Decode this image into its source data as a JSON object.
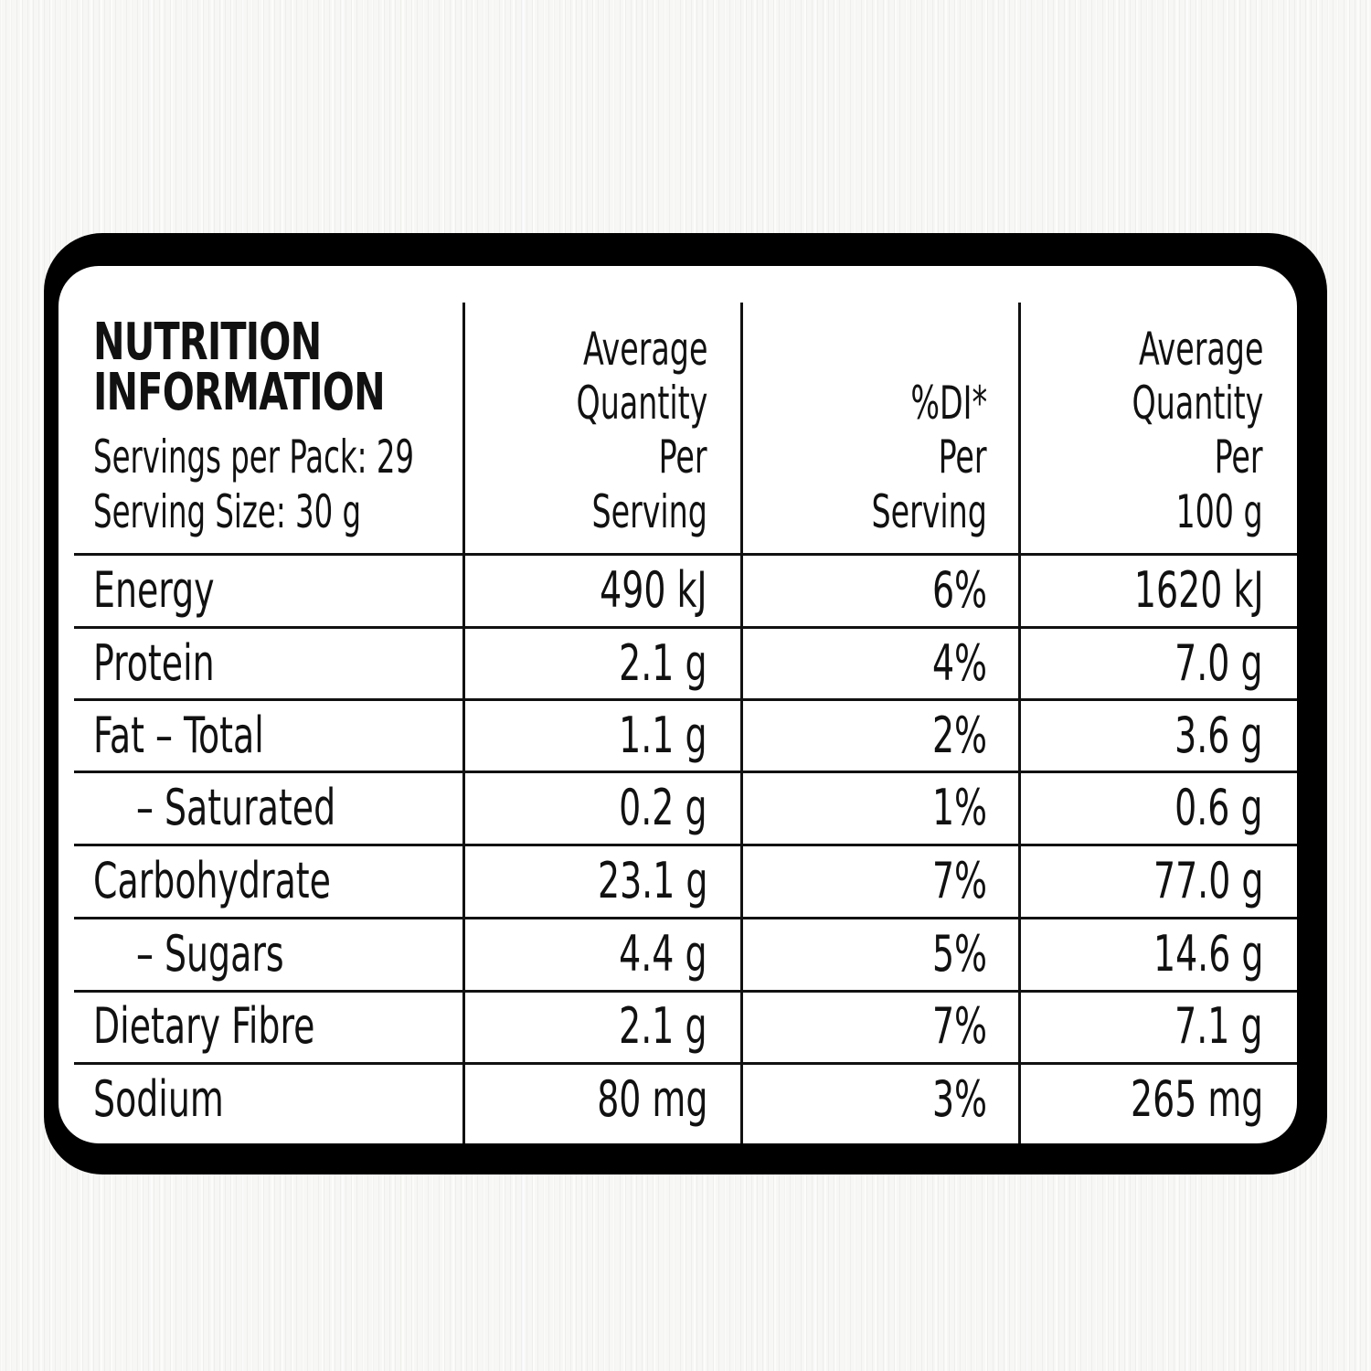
{
  "header": {
    "title_line1": "NUTRITION",
    "title_line2": "INFORMATION",
    "servings_per_pack": "Servings per Pack: 29",
    "serving_size": "Serving Size: 30 g"
  },
  "columns": {
    "per_serving": [
      "Average",
      "Quantity",
      "Per",
      "Serving"
    ],
    "di_per_serving": [
      "%DI*",
      "Per",
      "Serving"
    ],
    "per_100g": [
      "Average",
      "Quantity",
      "Per",
      "100 g"
    ]
  },
  "rows": [
    {
      "name": "Energy",
      "per_serving": "490 kJ",
      "di": "6%",
      "per_100g": "1620 kJ"
    },
    {
      "name": "Protein",
      "per_serving": "2.1 g",
      "di": "4%",
      "per_100g": "7.0 g"
    },
    {
      "name": "Fat – Total",
      "per_serving": "1.1 g",
      "di": "2%",
      "per_100g": "3.6 g"
    },
    {
      "name": "– Saturated",
      "per_serving": "0.2 g",
      "di": "1%",
      "per_100g": "0.6 g"
    },
    {
      "name": "Carbohydrate",
      "per_serving": "23.1 g",
      "di": "7%",
      "per_100g": "77.0 g"
    },
    {
      "name": "– Sugars",
      "per_serving": "4.4 g",
      "di": "5%",
      "per_100g": "14.6 g"
    },
    {
      "name": "Dietary Fibre",
      "per_serving": "2.1 g",
      "di": "7%",
      "per_100g": "7.1 g"
    },
    {
      "name": "Sodium",
      "per_serving": "80 mg",
      "di": "3%",
      "per_100g": "265 mg"
    }
  ]
}
